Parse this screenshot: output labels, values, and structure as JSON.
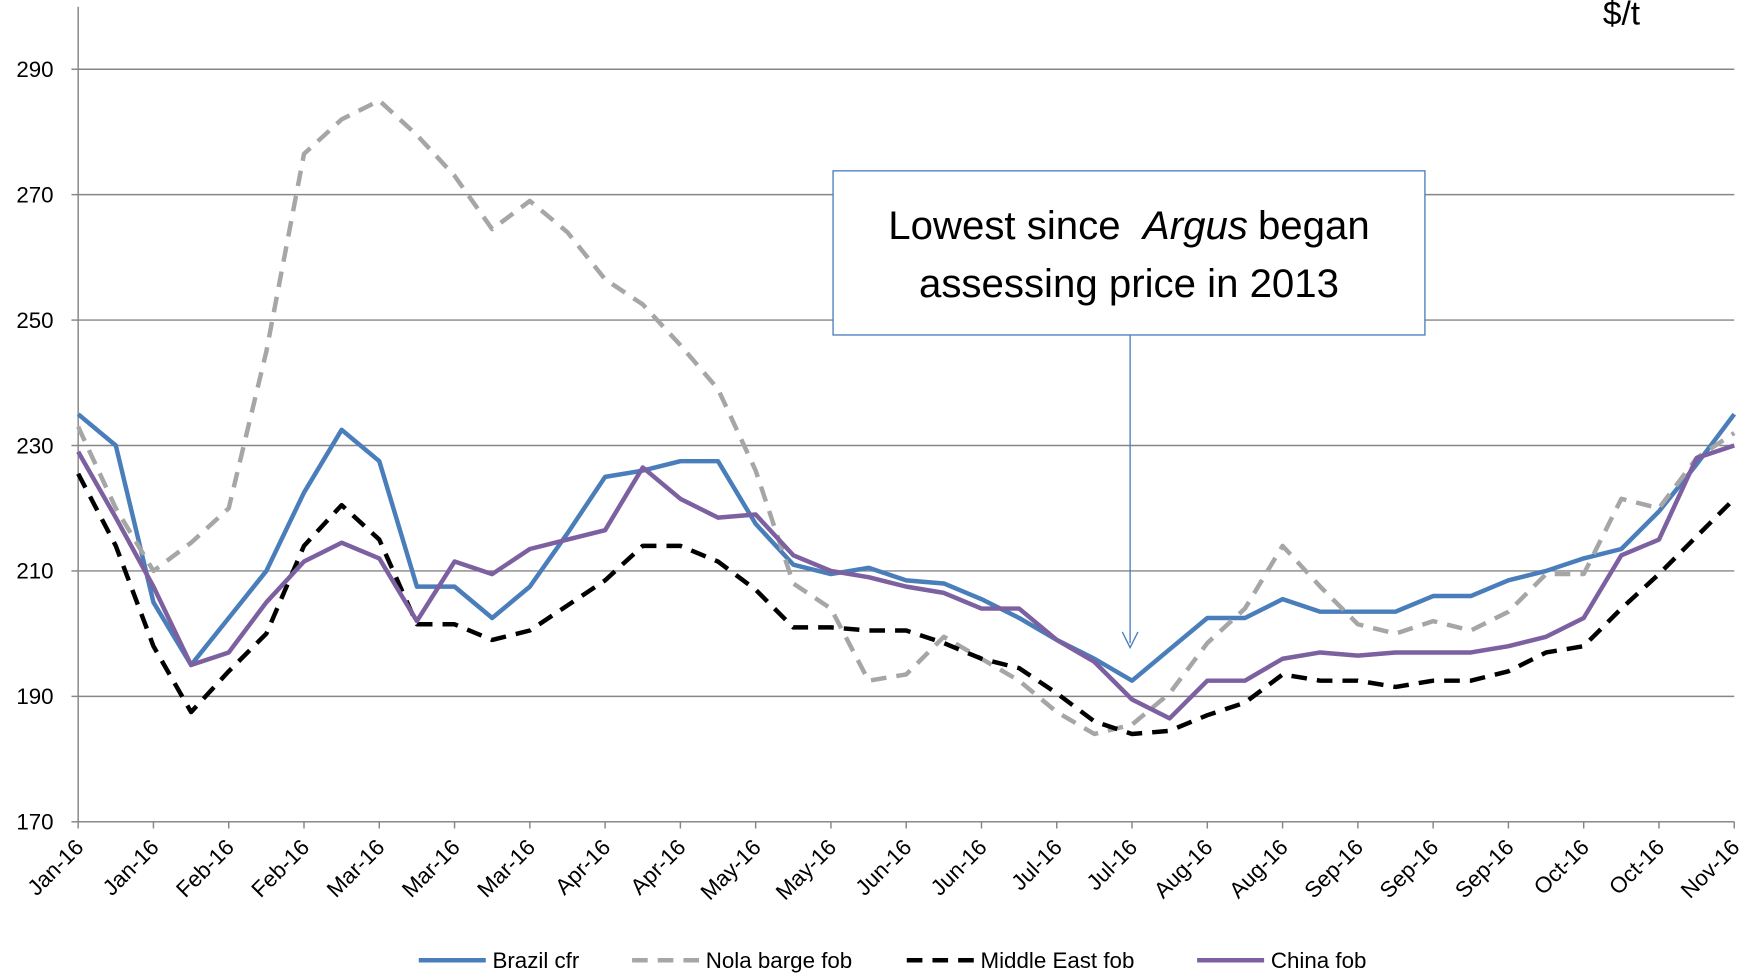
{
  "chart_data": {
    "type": "line",
    "unit_label": "$/t",
    "categories": [
      "Jan-16",
      null,
      "Jan-16",
      null,
      "Feb-16",
      null,
      "Feb-16",
      null,
      "Mar-16",
      null,
      "Mar-16",
      null,
      "Mar-16",
      null,
      "Apr-16",
      null,
      "Apr-16",
      null,
      "May-16",
      null,
      "May-16",
      null,
      "Jun-16",
      null,
      "Jun-16",
      null,
      "Jul-16",
      null,
      "Jul-16",
      null,
      "Aug-16",
      null,
      "Aug-16",
      null,
      "Sep-16",
      null,
      "Sep-16",
      null,
      "Sep-16",
      null,
      "Oct-16",
      null,
      "Oct-16",
      null,
      "Nov-16"
    ],
    "series": [
      {
        "name": "Brazil cfr",
        "color": "#4a7ebb",
        "dash": "solid",
        "values": [
          235,
          230,
          205,
          195,
          202.5,
          210,
          222.5,
          232.5,
          227.5,
          207.5,
          207.5,
          202.5,
          207.5,
          216,
          225,
          226,
          227.5,
          227.5,
          217.5,
          211,
          209.5,
          210.5,
          208.5,
          208,
          205.5,
          202.5,
          199,
          196,
          192.5,
          197.5,
          202.5,
          202.5,
          205.5,
          203.5,
          203.5,
          203.5,
          206,
          206,
          208.5,
          210,
          212,
          213.5,
          219.5,
          227,
          235
        ]
      },
      {
        "name": "Nola barge fob",
        "color": "#a6a6a6",
        "dash": "dashed",
        "values": [
          233,
          220,
          210,
          214.5,
          220,
          245,
          276.5,
          282,
          285,
          279.5,
          273,
          264.5,
          269,
          264,
          256.5,
          252.5,
          246,
          239,
          226,
          208,
          204,
          192.5,
          193.5,
          199.5,
          196,
          192.5,
          187.5,
          184,
          185.5,
          190.5,
          198.5,
          204,
          214,
          207.5,
          201.5,
          200,
          202,
          200.5,
          203.5,
          209.5,
          209.5,
          221.5,
          220,
          228,
          232
        ]
      },
      {
        "name": "Middle East fob",
        "color": "#000000",
        "dash": "dashed",
        "values": [
          225.5,
          214,
          198,
          187.5,
          194,
          200,
          214,
          220.5,
          215,
          201.5,
          201.5,
          199,
          200.5,
          204.5,
          208.5,
          214,
          214,
          211.5,
          207,
          201,
          201,
          200.5,
          200.5,
          198.5,
          196,
          194.5,
          190.5,
          186,
          184,
          184.5,
          187,
          189,
          193.5,
          192.5,
          192.5,
          191.5,
          192.5,
          192.5,
          194,
          197,
          198,
          204,
          209.5,
          215.5,
          221.5
        ]
      },
      {
        "name": "China fob",
        "color": "#7d60a0",
        "dash": "solid",
        "values": [
          229,
          218.5,
          207.5,
          195,
          197,
          205,
          211.5,
          214.5,
          212,
          202,
          211.5,
          209.5,
          213.5,
          215,
          216.5,
          226.5,
          221.5,
          218.5,
          219,
          212.5,
          210,
          209,
          207.5,
          206.5,
          204,
          204,
          199,
          195.5,
          189.5,
          186.5,
          192.5,
          192.5,
          196,
          197,
          196.5,
          197,
          197,
          197,
          198,
          199.5,
          202.5,
          212.5,
          215,
          228,
          230
        ]
      }
    ],
    "ylim": [
      170,
      290
    ],
    "yticks": [
      170,
      190,
      210,
      230,
      250,
      270,
      290
    ],
    "grid": true,
    "legend": "bottom",
    "annotation": {
      "line1_start": "Lowest since",
      "line1_italic": "Argus",
      "line1_end": "began",
      "line2": "assessing price in 2013",
      "box_color": "#4a7ebb"
    }
  }
}
